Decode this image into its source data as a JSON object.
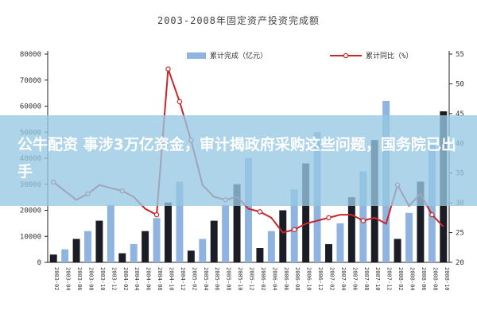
{
  "overlay": {
    "headline": "公牛配资 事涉3万亿资金，审计揭政府采购这些问题，国务院已出手"
  },
  "colors": {
    "bar_dark": "#1b1d26",
    "bar_blue": "#8fb4e0",
    "line_red": "#c8262b",
    "banner": "#96c8e1"
  },
  "chart_data": {
    "type": "bar",
    "title": "2003-2008年固定资产投资完成额",
    "xlabel": "",
    "ylabel": "",
    "ylim": [
      0,
      80000
    ],
    "y2lim": [
      20,
      55
    ],
    "yticks": [
      "80000",
      "70000",
      "60000",
      "50000",
      "40000",
      "30000",
      "20000",
      "10000",
      "0"
    ],
    "y2ticks": [
      "55",
      "50",
      "45",
      "40",
      "35",
      "30",
      "25",
      "20"
    ],
    "legend_position": "top",
    "grid": false,
    "categories": [
      "2003-02",
      "2003-04",
      "2003-06",
      "2003-08",
      "2003-10",
      "2003-12",
      "2004-02",
      "2004-04",
      "2004-06",
      "2004-08",
      "2004-10",
      "2004-12",
      "2005-02",
      "2005-04",
      "2005-06",
      "2005-08",
      "2005-10",
      "2005-12",
      "2006-02",
      "2006-04",
      "2006-06",
      "2006-08",
      "2006-10",
      "2006-12",
      "2007-02",
      "2007-04",
      "2007-06",
      "2007-08",
      "2007-10",
      "2007-12",
      "2008-02",
      "2008-04",
      "2008-06",
      "2008-08",
      "2008-10"
    ],
    "x_tick_labels": [
      "2003-02",
      "2003-04",
      "2003-06",
      "2003-08",
      "2003-10",
      "2003-12",
      "2004-02",
      "2004-04",
      "2004-06",
      "2004-08",
      "2004-10",
      "2004-12",
      "2005-02",
      "2005-04",
      "2005-06",
      "2005-08",
      "2005-10",
      "2005-12",
      "2006-02",
      "2006-04",
      "2006-06",
      "2006-08",
      "2006-10",
      "2006-12",
      "2007-02",
      "2007-04",
      "2007-06",
      "2007-08",
      "2007-10",
      "2007-12",
      "2008-02",
      "2008-04",
      "2008-06",
      "2008-08",
      "2008-10"
    ],
    "series": [
      {
        "name": "累计完成（亿元）",
        "kind": "bar",
        "axis": "left",
        "values": [
          3000,
          5000,
          9000,
          12000,
          16000,
          22000,
          3500,
          7000,
          12000,
          17000,
          23000,
          31000,
          4500,
          9000,
          16000,
          22000,
          30000,
          40000,
          5500,
          12000,
          20000,
          28000,
          38000,
          50000,
          7000,
          15000,
          25000,
          35000,
          47000,
          62000,
          9000,
          19000,
          31000,
          45000,
          58000
        ]
      },
      {
        "name": "累计同比（%）",
        "kind": "line",
        "axis": "right",
        "values": [
          33.5,
          32,
          30.5,
          31.5,
          33,
          32.5,
          32,
          31,
          29,
          28,
          52.5,
          47,
          40.5,
          33,
          31,
          30.5,
          31,
          29,
          28.5,
          27.5,
          25,
          25.5,
          26.5,
          27,
          27.5,
          28,
          28,
          27,
          27.5,
          26.5,
          33,
          29.5,
          31.5,
          28,
          26
        ]
      }
    ]
  }
}
